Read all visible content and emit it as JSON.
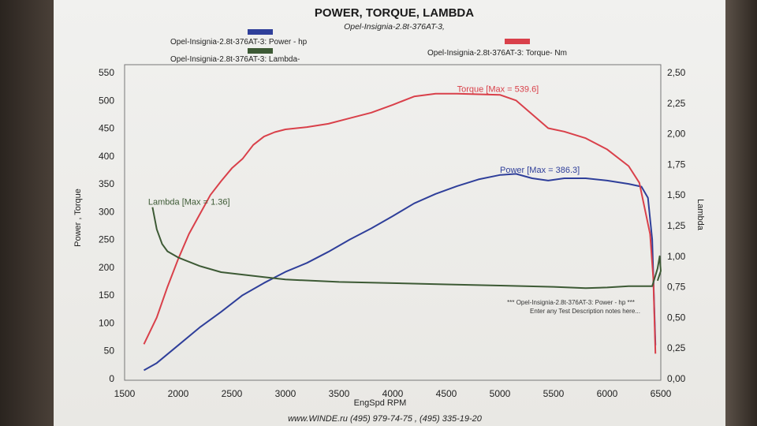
{
  "header": {
    "title": "POWER, TORQUE, LAMBDA",
    "subtitle": "Opel-Insignia-2.8t-376AT-3,"
  },
  "legend": {
    "power": "Opel-Insignia-2.8t-376AT-3: Power -  hp",
    "lambda": "Opel-Insignia-2.8t-376AT-3: Lambda-",
    "torque": "Opel-Insignia-2.8t-376AT-3: Torque-  Nm"
  },
  "note": {
    "line1": "*** Opel-Insignia-2.8t-376AT-3: Power -  hp  ***",
    "line2": "Enter any Test Description notes here..."
  },
  "footer": "www.WINDE.ru  (495) 979-74-75 , (495) 335-19-20",
  "colors": {
    "power": "#2f3f9a",
    "torque": "#d9404a",
    "lambda": "#3d5a35"
  },
  "chart_data": {
    "type": "line",
    "title": "POWER, TORQUE, LAMBDA",
    "xlabel": "EngSpd  RPM",
    "ylabel": "Power , Torque",
    "y2label": "Lambda",
    "xlim": [
      1500,
      6500
    ],
    "ylim": [
      0,
      550
    ],
    "y2lim": [
      0,
      2.5
    ],
    "xticks": [
      "1500",
      "2000",
      "2500",
      "3000",
      "3500",
      "4000",
      "4500",
      "5000",
      "5500",
      "6000",
      "6500"
    ],
    "yticks": [
      "0",
      "50",
      "100",
      "150",
      "200",
      "250",
      "300",
      "350",
      "400",
      "450",
      "500",
      "550"
    ],
    "y2ticks": [
      "0,00",
      "0,25",
      "0,50",
      "0,75",
      "1,00",
      "1,25",
      "1,50",
      "1,75",
      "2,00",
      "2,25",
      "2,50"
    ],
    "grid": false,
    "series": [
      {
        "name": "Power",
        "key": "power",
        "axis": "left",
        "label": "Power  [Max = 386.3]",
        "label_at": [
          5000,
          370
        ],
        "points": [
          [
            1680,
            15
          ],
          [
            1800,
            28
          ],
          [
            2000,
            60
          ],
          [
            2200,
            92
          ],
          [
            2400,
            120
          ],
          [
            2600,
            150
          ],
          [
            2800,
            172
          ],
          [
            3000,
            192
          ],
          [
            3200,
            208
          ],
          [
            3400,
            228
          ],
          [
            3600,
            250
          ],
          [
            3800,
            270
          ],
          [
            4000,
            292
          ],
          [
            4200,
            315
          ],
          [
            4400,
            332
          ],
          [
            4600,
            346
          ],
          [
            4800,
            358
          ],
          [
            5000,
            366
          ],
          [
            5150,
            368
          ],
          [
            5300,
            360
          ],
          [
            5450,
            356
          ],
          [
            5600,
            360
          ],
          [
            5800,
            360
          ],
          [
            6000,
            356
          ],
          [
            6200,
            350
          ],
          [
            6320,
            345
          ],
          [
            6380,
            325
          ],
          [
            6420,
            250
          ],
          [
            6450,
            60
          ]
        ]
      },
      {
        "name": "Torque",
        "key": "torque",
        "axis": "left",
        "label": "Torque [Max = 539.6]",
        "label_at": [
          4600,
          515
        ],
        "points": [
          [
            1680,
            62
          ],
          [
            1800,
            110
          ],
          [
            1900,
            165
          ],
          [
            2000,
            215
          ],
          [
            2100,
            260
          ],
          [
            2200,
            295
          ],
          [
            2300,
            330
          ],
          [
            2400,
            355
          ],
          [
            2500,
            378
          ],
          [
            2600,
            395
          ],
          [
            2700,
            420
          ],
          [
            2800,
            435
          ],
          [
            2900,
            443
          ],
          [
            3000,
            448
          ],
          [
            3200,
            452
          ],
          [
            3400,
            458
          ],
          [
            3600,
            468
          ],
          [
            3800,
            478
          ],
          [
            4000,
            492
          ],
          [
            4200,
            507
          ],
          [
            4400,
            512
          ],
          [
            4600,
            512
          ],
          [
            4800,
            511
          ],
          [
            5000,
            510
          ],
          [
            5150,
            500
          ],
          [
            5300,
            475
          ],
          [
            5450,
            450
          ],
          [
            5600,
            444
          ],
          [
            5800,
            432
          ],
          [
            6000,
            412
          ],
          [
            6200,
            382
          ],
          [
            6300,
            352
          ],
          [
            6400,
            260
          ],
          [
            6430,
            180
          ],
          [
            6450,
            45
          ]
        ]
      },
      {
        "name": "Lambda",
        "key": "lambda",
        "axis": "right",
        "label": "Lambda [Max = 1.36]",
        "label_at": [
          1720,
          1.42
        ],
        "points": [
          [
            1760,
            1.4
          ],
          [
            1800,
            1.22
          ],
          [
            1850,
            1.1
          ],
          [
            1900,
            1.04
          ],
          [
            2000,
            0.99
          ],
          [
            2200,
            0.92
          ],
          [
            2400,
            0.87
          ],
          [
            2600,
            0.85
          ],
          [
            2800,
            0.83
          ],
          [
            3000,
            0.81
          ],
          [
            3500,
            0.79
          ],
          [
            4000,
            0.78
          ],
          [
            4500,
            0.77
          ],
          [
            5000,
            0.76
          ],
          [
            5500,
            0.75
          ],
          [
            5800,
            0.74
          ],
          [
            6000,
            0.745
          ],
          [
            6200,
            0.755
          ],
          [
            6420,
            0.755
          ],
          [
            6470,
            0.9
          ],
          [
            6490,
            1.0
          ],
          [
            6500,
            0.88
          ],
          [
            6470,
            0.8
          ]
        ]
      }
    ]
  }
}
